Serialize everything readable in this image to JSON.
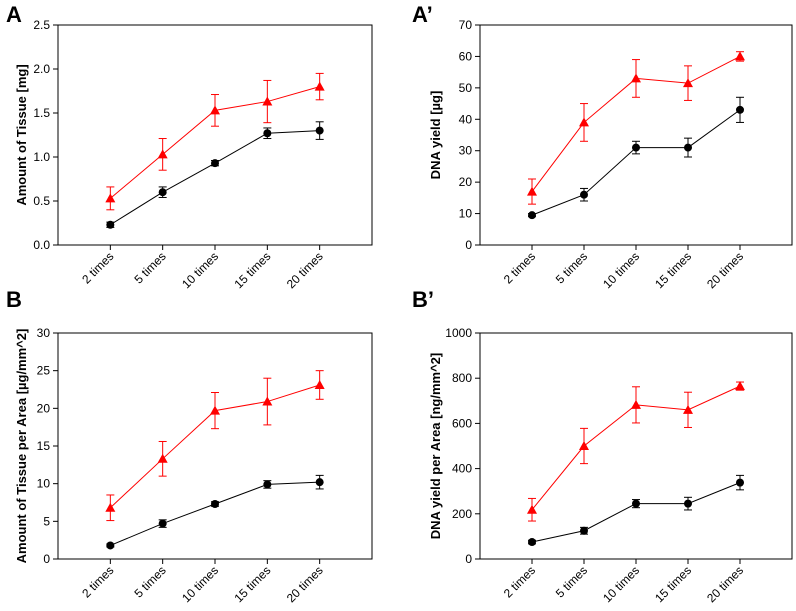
{
  "chart_data": [
    {
      "type": "line",
      "panel": "A",
      "title": "",
      "xlabel": "",
      "ylabel": "Amount of Tissue [mg]",
      "categories": [
        "2 times",
        "5 times",
        "10 times",
        "15 times",
        "20 times"
      ],
      "ylim": [
        0,
        2.5
      ],
      "yticks": [
        "0.0",
        "0.5",
        "1.0",
        "1.5",
        "2.0",
        "2.5"
      ],
      "grid": false,
      "series": [
        {
          "name": "black",
          "color": "#000000",
          "marker": "circle",
          "values": [
            0.23,
            0.6,
            0.93,
            1.27,
            1.3
          ],
          "errors": [
            0.03,
            0.06,
            0.03,
            0.06,
            0.1
          ]
        },
        {
          "name": "red",
          "color": "#ff0000",
          "marker": "triangle",
          "values": [
            0.53,
            1.03,
            1.53,
            1.63,
            1.8
          ],
          "errors": [
            0.13,
            0.18,
            0.18,
            0.24,
            0.15
          ]
        }
      ]
    },
    {
      "type": "line",
      "panel": "A’",
      "title": "",
      "xlabel": "",
      "ylabel": "DNA yield [µg]",
      "categories": [
        "2 times",
        "5 times",
        "10 times",
        "15 times",
        "20 times"
      ],
      "ylim": [
        0,
        70
      ],
      "yticks": [
        "0",
        "10",
        "20",
        "30",
        "40",
        "50",
        "60",
        "70"
      ],
      "grid": false,
      "series": [
        {
          "name": "black",
          "color": "#000000",
          "marker": "circle",
          "values": [
            9.5,
            16.0,
            31.0,
            31.0,
            43.0
          ],
          "errors": [
            0.5,
            2.0,
            2.0,
            3.0,
            4.0
          ]
        },
        {
          "name": "red",
          "color": "#ff0000",
          "marker": "triangle",
          "values": [
            17.0,
            39.0,
            53.0,
            51.5,
            60.0
          ],
          "errors": [
            4.0,
            6.0,
            6.0,
            5.5,
            1.5
          ]
        }
      ]
    },
    {
      "type": "line",
      "panel": "B",
      "title": "",
      "xlabel": "",
      "ylabel": "Amount of Tissue per Area [µg/mm^2]",
      "categories": [
        "2 times",
        "5 times",
        "10 times",
        "15 times",
        "20 times"
      ],
      "ylim": [
        0,
        30
      ],
      "yticks": [
        "0",
        "5",
        "10",
        "15",
        "20",
        "25",
        "30"
      ],
      "grid": false,
      "series": [
        {
          "name": "black",
          "color": "#000000",
          "marker": "circle",
          "values": [
            1.8,
            4.7,
            7.3,
            9.9,
            10.2
          ],
          "errors": [
            0.2,
            0.5,
            0.3,
            0.5,
            0.9
          ]
        },
        {
          "name": "red",
          "color": "#ff0000",
          "marker": "triangle",
          "values": [
            6.8,
            13.3,
            19.7,
            20.9,
            23.1
          ],
          "errors": [
            1.7,
            2.3,
            2.4,
            3.1,
            1.9
          ]
        }
      ]
    },
    {
      "type": "line",
      "panel": "B’",
      "title": "",
      "xlabel": "",
      "ylabel": "DNA yield per Area [ng/mm^2]",
      "categories": [
        "2 times",
        "5 times",
        "10 times",
        "15 times",
        "20 times"
      ],
      "ylim": [
        0,
        1000
      ],
      "yticks": [
        "0",
        "200",
        "400",
        "600",
        "800",
        "1000"
      ],
      "grid": false,
      "series": [
        {
          "name": "black",
          "color": "#000000",
          "marker": "circle",
          "values": [
            75,
            125,
            245,
            245,
            338
          ],
          "errors": [
            8,
            15,
            18,
            28,
            32
          ]
        },
        {
          "name": "red",
          "color": "#ff0000",
          "marker": "triangle",
          "values": [
            218,
            500,
            682,
            660,
            765
          ],
          "errors": [
            50,
            78,
            80,
            78,
            18
          ]
        }
      ]
    }
  ]
}
